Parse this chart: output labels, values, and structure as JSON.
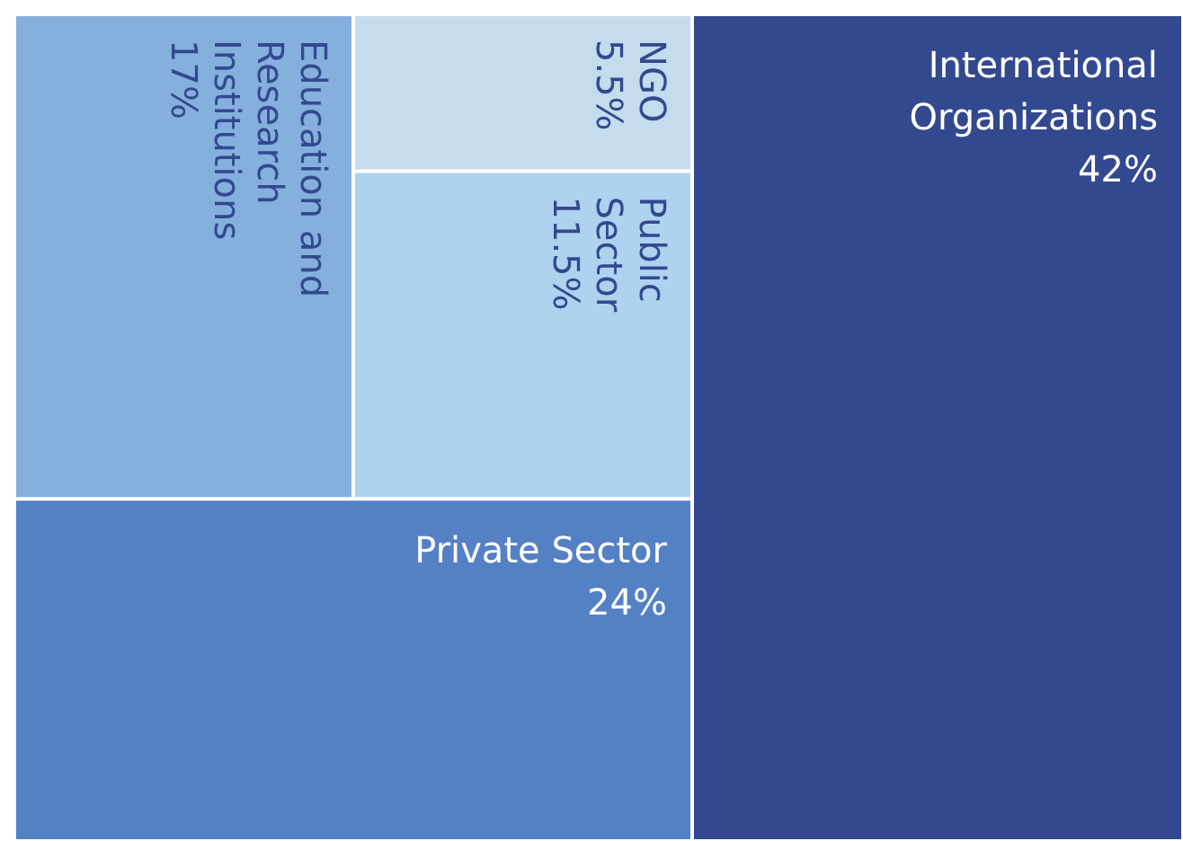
{
  "chart_data": {
    "type": "other",
    "categories": [
      "Education and Research Institutions",
      "NGO",
      "Public Sector",
      "Private Sector",
      "International Organizations"
    ],
    "values": [
      17,
      5.5,
      11.5,
      24,
      42
    ],
    "value_labels": [
      "17%",
      "5.5%",
      "11.5%",
      "24%",
      "42%"
    ],
    "colors": [
      "#85b0dd",
      "#c5dcee",
      "#aed3ef",
      "#5480c4",
      "#33498f"
    ]
  }
}
